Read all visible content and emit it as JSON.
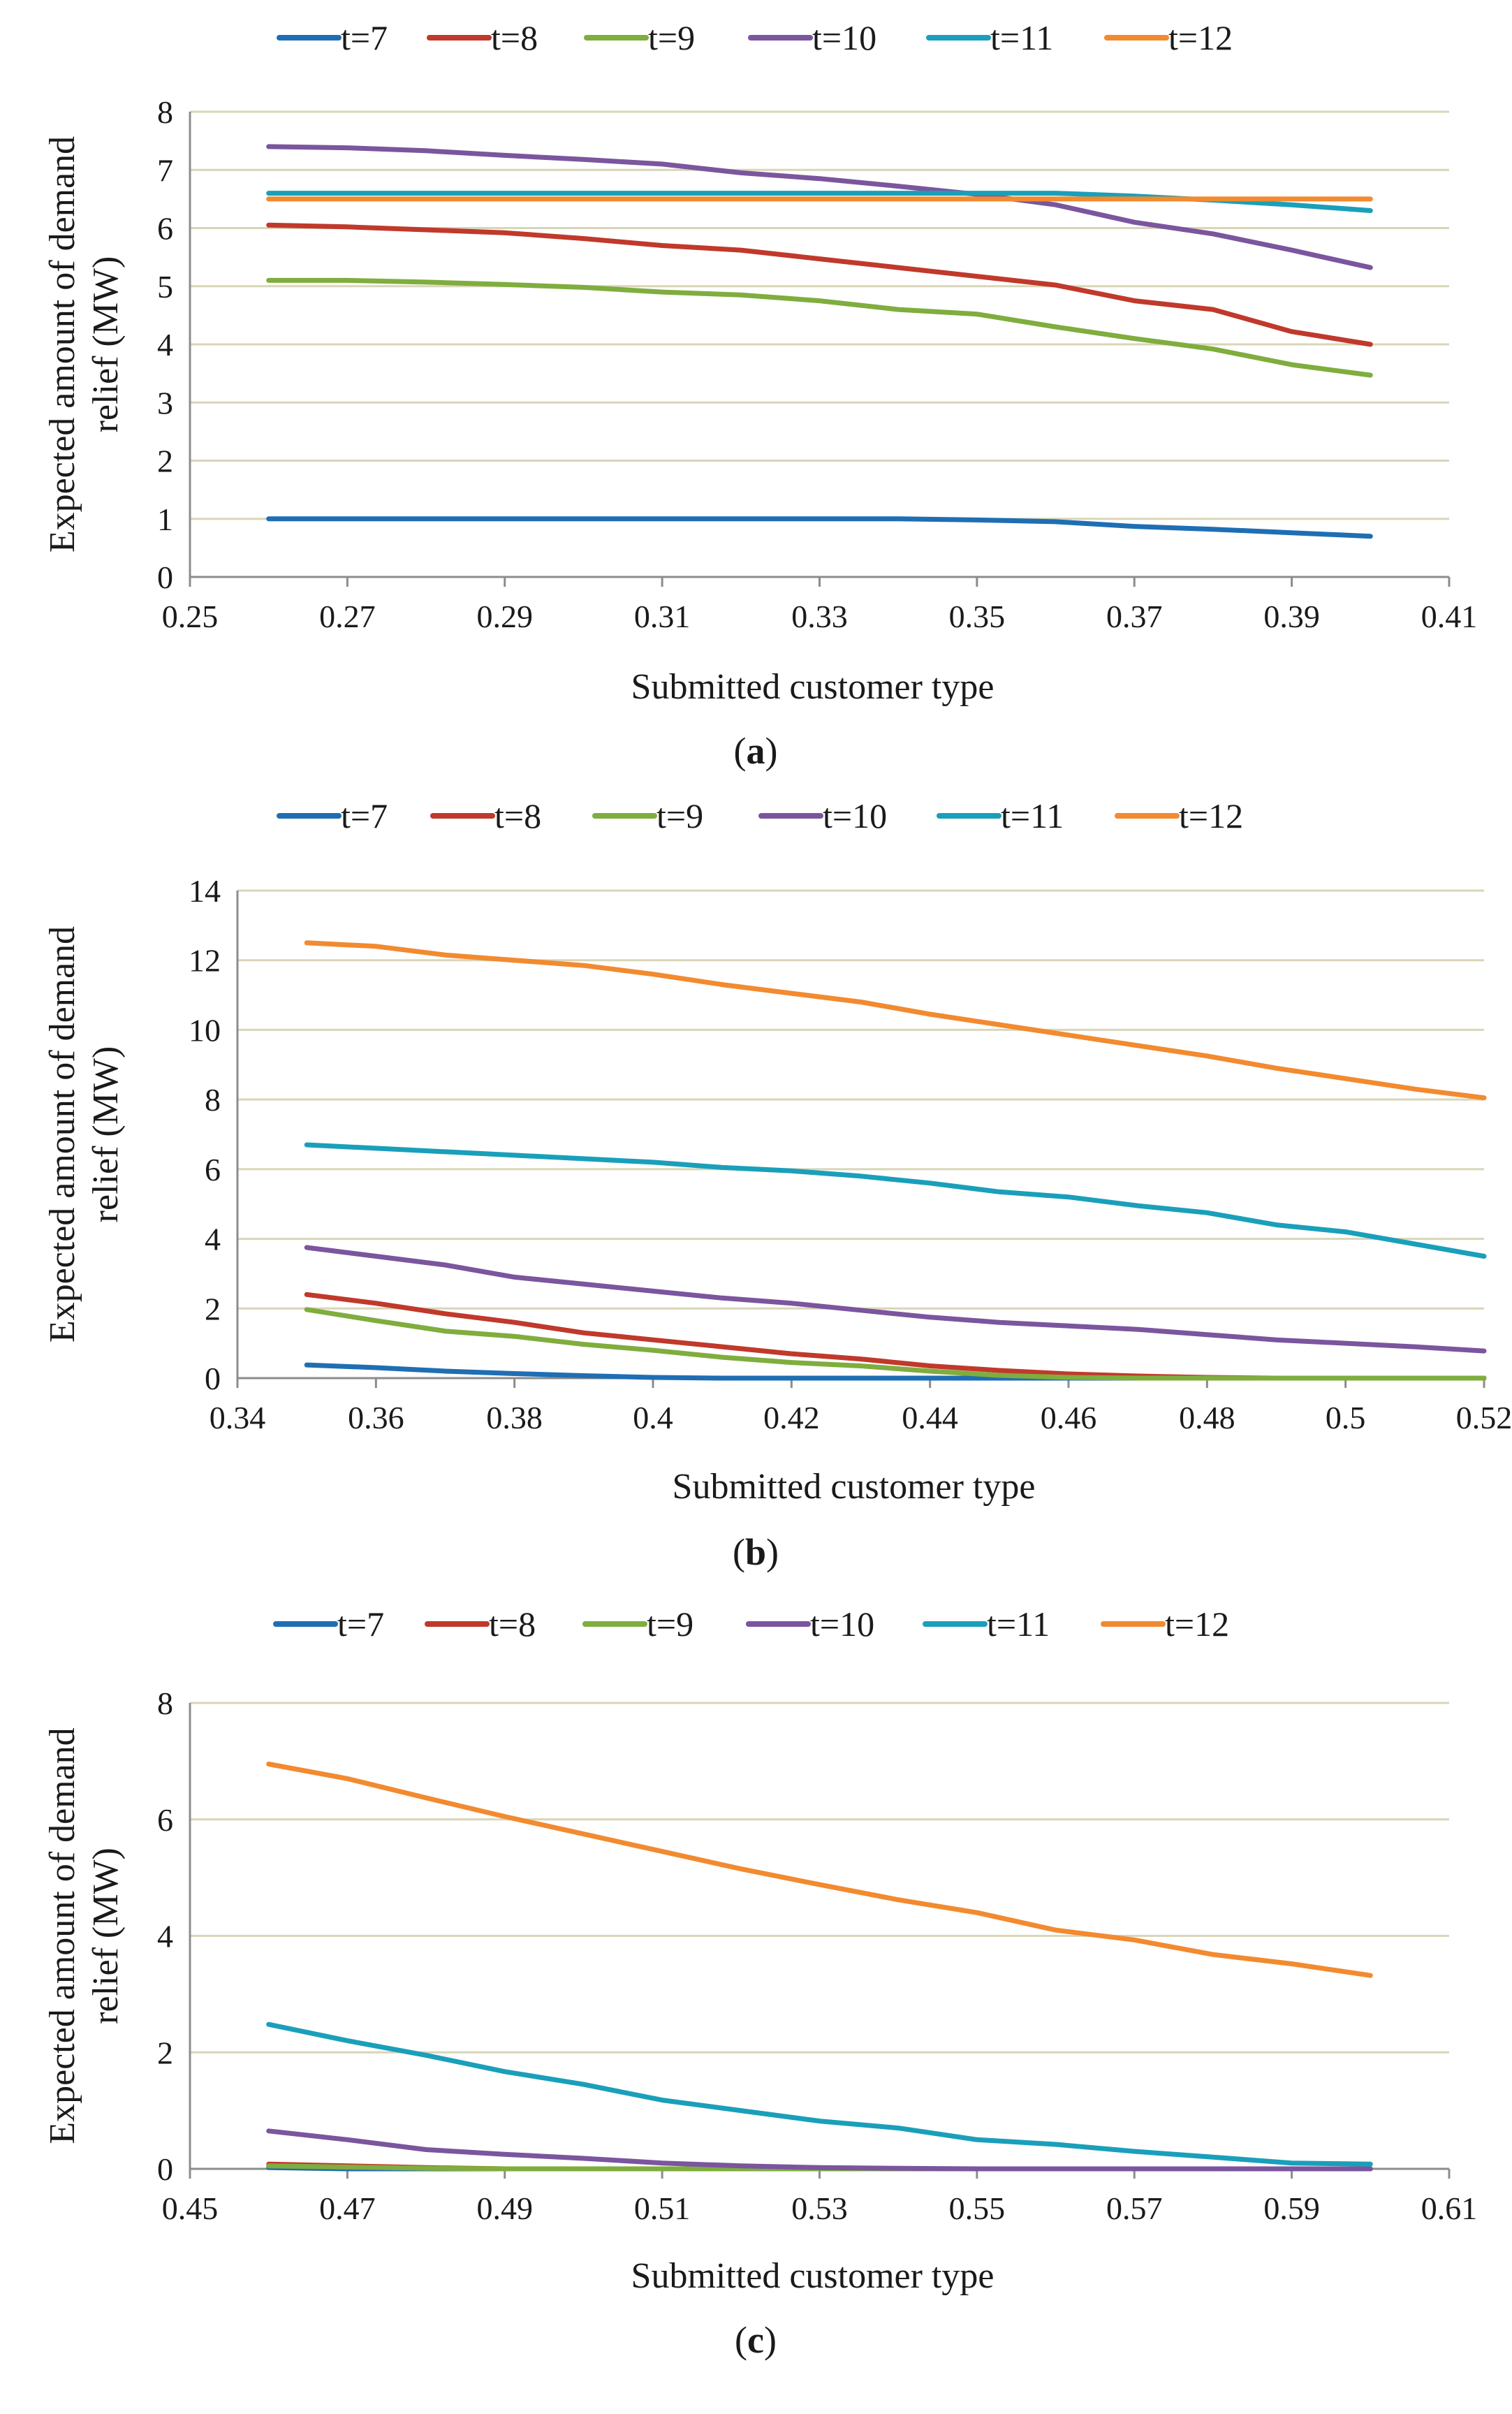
{
  "colors": {
    "t=7": "#1f6eb4",
    "t=8": "#c0392b",
    "t=9": "#7fad3e",
    "t=10": "#7b559e",
    "t=11": "#1a9fba",
    "t=12": "#f28a2f",
    "grid": "#d9d5b8",
    "axis": "#8c8c8c"
  },
  "chart_data": [
    {
      "panel": "a",
      "caption": "(a)",
      "type": "line",
      "title": "",
      "xlabel": "Submitted customer type",
      "ylabel": "Expected amount of demand relief (MW)",
      "ylabel_lines": [
        "Expected amount of demand",
        "relief (MW)"
      ],
      "xlim": [
        0.25,
        0.41
      ],
      "ylim": [
        0,
        8
      ],
      "xticks": [
        "0.25",
        "0.27",
        "0.29",
        "0.31",
        "0.33",
        "0.35",
        "0.37",
        "0.39",
        "0.41"
      ],
      "yticks": [
        "0",
        "1",
        "2",
        "3",
        "4",
        "5",
        "6",
        "7",
        "8"
      ],
      "grid": "horizontal",
      "legend": "top",
      "x": [
        0.26,
        0.27,
        0.28,
        0.29,
        0.3,
        0.31,
        0.32,
        0.33,
        0.34,
        0.35,
        0.36,
        0.37,
        0.38,
        0.39,
        0.4
      ],
      "series": [
        {
          "name": "t=7",
          "values": [
            1.0,
            1.0,
            1.0,
            1.0,
            1.0,
            1.0,
            1.0,
            1.0,
            1.0,
            0.98,
            0.95,
            0.87,
            0.82,
            0.76,
            0.7
          ]
        },
        {
          "name": "t=8",
          "values": [
            6.05,
            6.02,
            5.97,
            5.92,
            5.82,
            5.7,
            5.62,
            5.47,
            5.32,
            5.17,
            5.02,
            4.75,
            4.6,
            4.22,
            4.0
          ]
        },
        {
          "name": "t=9",
          "values": [
            5.1,
            5.1,
            5.07,
            5.03,
            4.98,
            4.9,
            4.85,
            4.75,
            4.6,
            4.52,
            4.3,
            4.1,
            3.92,
            3.65,
            3.47
          ]
        },
        {
          "name": "t=10",
          "values": [
            7.4,
            7.38,
            7.33,
            7.25,
            7.18,
            7.1,
            6.95,
            6.85,
            6.72,
            6.58,
            6.4,
            6.1,
            5.9,
            5.62,
            5.32
          ]
        },
        {
          "name": "t=11",
          "values": [
            6.6,
            6.6,
            6.6,
            6.6,
            6.6,
            6.6,
            6.6,
            6.6,
            6.6,
            6.6,
            6.6,
            6.55,
            6.48,
            6.4,
            6.3
          ]
        },
        {
          "name": "t=12",
          "values": [
            6.5,
            6.5,
            6.5,
            6.5,
            6.5,
            6.5,
            6.5,
            6.5,
            6.5,
            6.5,
            6.5,
            6.5,
            6.5,
            6.5,
            6.5
          ]
        }
      ]
    },
    {
      "panel": "b",
      "caption": "(b)",
      "type": "line",
      "title": "",
      "xlabel": "Submitted customer type",
      "ylabel": "Expected amount of demand relief (MW)",
      "ylabel_lines": [
        "Expected amount of demand",
        "relief (MW)"
      ],
      "xlim": [
        0.34,
        0.52
      ],
      "ylim": [
        0,
        14
      ],
      "xticks": [
        "0.34",
        "0.36",
        "0.38",
        "0.4",
        "0.42",
        "0.44",
        "0.46",
        "0.48",
        "0.5",
        "0.52"
      ],
      "yticks": [
        "0",
        "2",
        "4",
        "6",
        "8",
        "10",
        "12",
        "14"
      ],
      "grid": "horizontal",
      "legend": "top",
      "x": [
        0.35,
        0.36,
        0.37,
        0.38,
        0.39,
        0.4,
        0.41,
        0.42,
        0.43,
        0.44,
        0.45,
        0.46,
        0.47,
        0.48,
        0.49,
        0.5,
        0.51,
        0.52
      ],
      "series": [
        {
          "name": "t=7",
          "values": [
            0.38,
            0.3,
            0.2,
            0.13,
            0.07,
            0.02,
            0.0,
            0.0,
            0.0,
            0.0,
            0.0,
            0.0,
            0.0,
            0.0,
            0.0,
            0.0,
            0.0,
            0.0
          ]
        },
        {
          "name": "t=8",
          "values": [
            2.4,
            2.15,
            1.85,
            1.6,
            1.3,
            1.1,
            0.9,
            0.7,
            0.55,
            0.35,
            0.22,
            0.12,
            0.06,
            0.02,
            0.0,
            0.0,
            0.0,
            0.0
          ]
        },
        {
          "name": "t=9",
          "values": [
            1.97,
            1.65,
            1.35,
            1.2,
            0.97,
            0.8,
            0.6,
            0.45,
            0.35,
            0.2,
            0.08,
            0.02,
            0.0,
            0.0,
            0.0,
            0.0,
            0.0,
            0.0
          ]
        },
        {
          "name": "t=10",
          "values": [
            3.75,
            3.5,
            3.25,
            2.9,
            2.7,
            2.5,
            2.3,
            2.15,
            1.95,
            1.75,
            1.6,
            1.5,
            1.4,
            1.25,
            1.1,
            1.0,
            0.9,
            0.78
          ]
        },
        {
          "name": "t=11",
          "values": [
            6.7,
            6.6,
            6.5,
            6.4,
            6.3,
            6.2,
            6.05,
            5.95,
            5.8,
            5.6,
            5.35,
            5.2,
            4.95,
            4.75,
            4.4,
            4.2,
            3.85,
            3.5
          ]
        },
        {
          "name": "t=12",
          "values": [
            12.5,
            12.4,
            12.15,
            12.0,
            11.85,
            11.6,
            11.3,
            11.05,
            10.8,
            10.45,
            10.15,
            9.85,
            9.55,
            9.25,
            8.9,
            8.6,
            8.3,
            8.05
          ]
        }
      ]
    },
    {
      "panel": "c",
      "caption": "(c)",
      "type": "line",
      "title": "",
      "xlabel": "Submitted customer type",
      "ylabel": "Expected amount of demand relief (MW)",
      "ylabel_lines": [
        "Expected amount of demand",
        "relief (MW)"
      ],
      "xlim": [
        0.45,
        0.61
      ],
      "ylim": [
        0,
        8
      ],
      "xticks": [
        "0.45",
        "0.47",
        "0.49",
        "0.51",
        "0.53",
        "0.55",
        "0.57",
        "0.59",
        "0.61"
      ],
      "yticks": [
        "0",
        "2",
        "4",
        "6",
        "8"
      ],
      "grid": "horizontal",
      "legend": "top",
      "x": [
        0.46,
        0.47,
        0.48,
        0.49,
        0.5,
        0.51,
        0.52,
        0.53,
        0.54,
        0.55,
        0.56,
        0.57,
        0.58,
        0.59,
        0.6
      ],
      "series": [
        {
          "name": "t=7",
          "values": [
            0.02,
            0.0,
            0.0,
            0.0,
            0.0,
            0.0,
            0.0,
            0.0,
            0.0,
            0.0,
            0.0,
            0.0,
            0.0,
            0.0,
            0.0
          ]
        },
        {
          "name": "t=8",
          "values": [
            0.08,
            0.05,
            0.02,
            0.0,
            0.0,
            0.0,
            0.0,
            0.0,
            0.0,
            0.0,
            0.0,
            0.0,
            0.0,
            0.0,
            0.0
          ]
        },
        {
          "name": "t=9",
          "values": [
            0.05,
            0.03,
            0.01,
            0.0,
            0.0,
            0.0,
            0.0,
            0.0,
            0.0,
            0.0,
            0.0,
            0.0,
            0.0,
            0.0,
            0.0
          ]
        },
        {
          "name": "t=10",
          "values": [
            0.65,
            0.5,
            0.33,
            0.25,
            0.18,
            0.1,
            0.05,
            0.02,
            0.01,
            0.0,
            0.0,
            0.0,
            0.0,
            0.0,
            0.0
          ]
        },
        {
          "name": "t=11",
          "values": [
            2.48,
            2.2,
            1.95,
            1.67,
            1.45,
            1.18,
            1.0,
            0.82,
            0.7,
            0.5,
            0.42,
            0.3,
            0.2,
            0.1,
            0.08
          ]
        },
        {
          "name": "t=12",
          "values": [
            6.95,
            6.7,
            6.37,
            6.05,
            5.75,
            5.45,
            5.15,
            4.88,
            4.62,
            4.4,
            4.1,
            3.93,
            3.68,
            3.52,
            3.32
          ]
        }
      ]
    }
  ]
}
